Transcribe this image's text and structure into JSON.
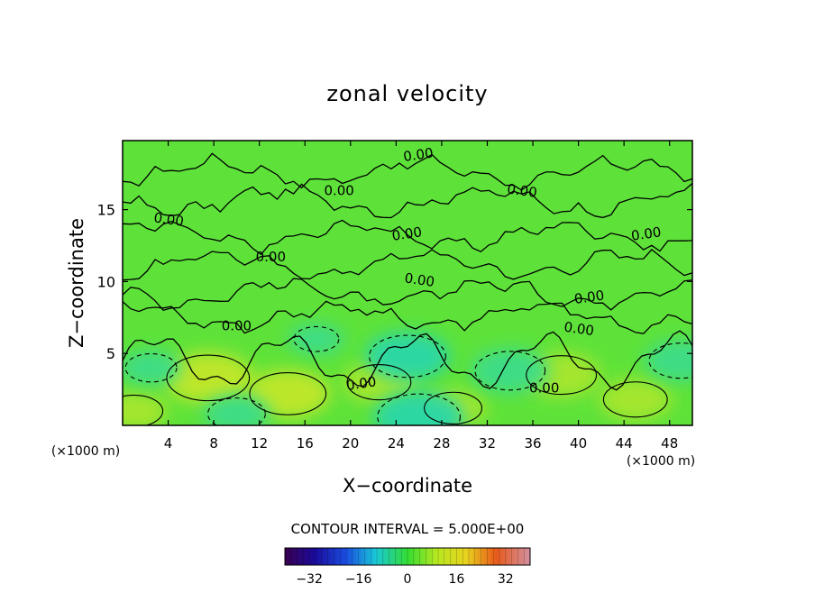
{
  "chart_data": {
    "type": "heatmap",
    "title": "zonal velocity",
    "xlabel": "X−coordinate",
    "ylabel": "Z−coordinate",
    "x_unit_left": "(×1000 m)",
    "x_unit_right": "(×1000 m)",
    "xlim": [
      0,
      50
    ],
    "ylim": [
      0,
      19.8
    ],
    "x_ticks": [
      4,
      8,
      12,
      16,
      20,
      24,
      28,
      32,
      36,
      40,
      44,
      48
    ],
    "y_ticks": [
      5,
      10,
      15
    ],
    "contour_interval_text": "CONTOUR INTERVAL = 5.000E+00",
    "contour_label": "0.00",
    "contour_label_count": 13,
    "colorbar": {
      "range": [
        -40,
        40
      ],
      "ticks": [
        -32,
        -16,
        0,
        16,
        32
      ],
      "tick_labels": [
        "−32",
        "−16",
        "0",
        "16",
        "32"
      ]
    },
    "features": [
      {
        "x": 7.5,
        "z": 3.3,
        "value": 9,
        "kind": "positive"
      },
      {
        "x": 14.5,
        "z": 2.2,
        "value": 8,
        "kind": "positive"
      },
      {
        "x": 22.5,
        "z": 3.0,
        "value": 6,
        "kind": "positive"
      },
      {
        "x": 29.0,
        "z": 1.2,
        "value": 5,
        "kind": "positive"
      },
      {
        "x": 38.5,
        "z": 3.5,
        "value": 7,
        "kind": "positive"
      },
      {
        "x": 45.0,
        "z": 1.8,
        "value": 6,
        "kind": "positive"
      },
      {
        "x": 1.0,
        "z": 1.0,
        "value": 5,
        "kind": "positive"
      },
      {
        "x": 25.0,
        "z": 4.8,
        "value": -8,
        "kind": "negative"
      },
      {
        "x": 34.0,
        "z": 3.8,
        "value": -7,
        "kind": "negative"
      },
      {
        "x": 49.0,
        "z": 4.5,
        "value": -6,
        "kind": "negative"
      },
      {
        "x": 26.0,
        "z": 0.6,
        "value": -9,
        "kind": "negative"
      },
      {
        "x": 2.5,
        "z": 4.0,
        "value": -4,
        "kind": "negative"
      },
      {
        "x": 10.0,
        "z": 0.8,
        "value": -5,
        "kind": "negative"
      },
      {
        "x": 17.0,
        "z": 6.0,
        "value": -3,
        "kind": "negative"
      }
    ]
  }
}
